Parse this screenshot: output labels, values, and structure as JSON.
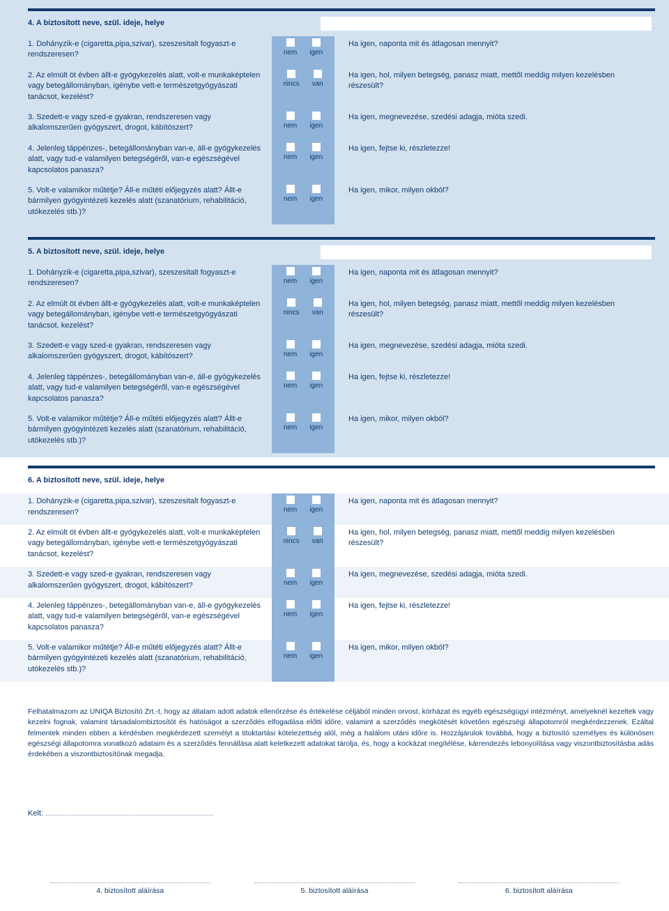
{
  "colors": {
    "bg_blue": "#d4e2f0",
    "bg_white": "#ffffff",
    "checkbox_panel": "#8fb3d9",
    "text": "#123a6b",
    "rule": "#123a6b"
  },
  "sections": [
    {
      "num": "4",
      "striped": "blue",
      "title": "4. A biztosított neve, szül. ideje, helye"
    },
    {
      "num": "5",
      "striped": "blue",
      "title": "5. A biztosított neve, szül. ideje, helye"
    },
    {
      "num": "6",
      "striped": "white",
      "title": "6. A biztosított neve, szül. ideje, helye"
    }
  ],
  "questions": [
    {
      "text": "1. Dohányzik-e (cigaretta,pipa,szivar), szeszesitalt fogyaszt-e rendszeresen?",
      "opt1": "nem",
      "opt2": "igen",
      "prompt": "Ha igen, naponta mit és átlagosan mennyit?"
    },
    {
      "text": "2. Az elmúlt öt évben állt-e gyógykezelés alatt, volt-e munkaképtelen vagy betegállományban, igénybe vett-e természetgyógyászati tanácsot, kezelést?",
      "opt1": "nincs",
      "opt2": "van",
      "prompt": "Ha igen, hol, milyen betegség, panasz miatt, mettől meddig milyen kezelésben részesült?"
    },
    {
      "text": "3. Szedett-e vagy szed-e gyakran, rendszeresen vagy alkalomszerűen gyógyszert, drogot, kábítószert?",
      "opt1": "nem",
      "opt2": "igen",
      "prompt": "Ha igen, megnevezése, szedési adagja, mióta szedi."
    },
    {
      "text": "4. Jelenleg táppénzes-, betegállományban van-e, áll-e gyógykezelés alatt, vagy tud-e valamilyen betegségéről, van-e egészségével kapcsolatos panasza?",
      "opt1": "nem",
      "opt2": "igen",
      "prompt": "Ha igen, fejtse ki, részletezze!"
    },
    {
      "text": "5. Volt-e valamikor műtétje? Áll-e műtéti előjegyzés alatt? Állt-e bármilyen gyógyintézeti kezelés alatt (szanatórium, rehabilitáció, utókezelés stb.)?",
      "opt1": "nem",
      "opt2": "igen",
      "prompt": "Ha igen, mikor, milyen okból?"
    }
  ],
  "authorization": "Felhatalmazom az UNIQA Biztosító Zrt.-t, hogy az általam adott adatok ellenőrzése és értékelése céljából minden orvost, kórházat és egyéb egészségügyi intézményt, amelyeknél kezeltek vagy kezelni fognak, valamint társadalombiztosítót és hatóságot a szerződés elfogadása előtti időre, valamint a szerződés megkötését követően egészségi állapotomról megkérdezzenek. Ezáltal felmentek minden ebben a kérdésben megkérdezett személyt a titoktartási kötelezettség alól, még a halálom utáni időre is. Hozzájárulok továbbá, hogy a biztosító személyes és különösen egészségi állapotomra vonatkozó adataim és a szerződés fennállása alatt keletkezett adatokat tárolja, és, hogy a kockázat megítélése, kárrendezés lebonyolítása vagy viszontbiztosításba adás érdekében a viszontbiztosítónak megadja.",
  "kelt_label": "Kelt:",
  "signatures": [
    "4. biztosított aláírása",
    "5. biztosított aláírása",
    "6. biztosított aláírása"
  ]
}
